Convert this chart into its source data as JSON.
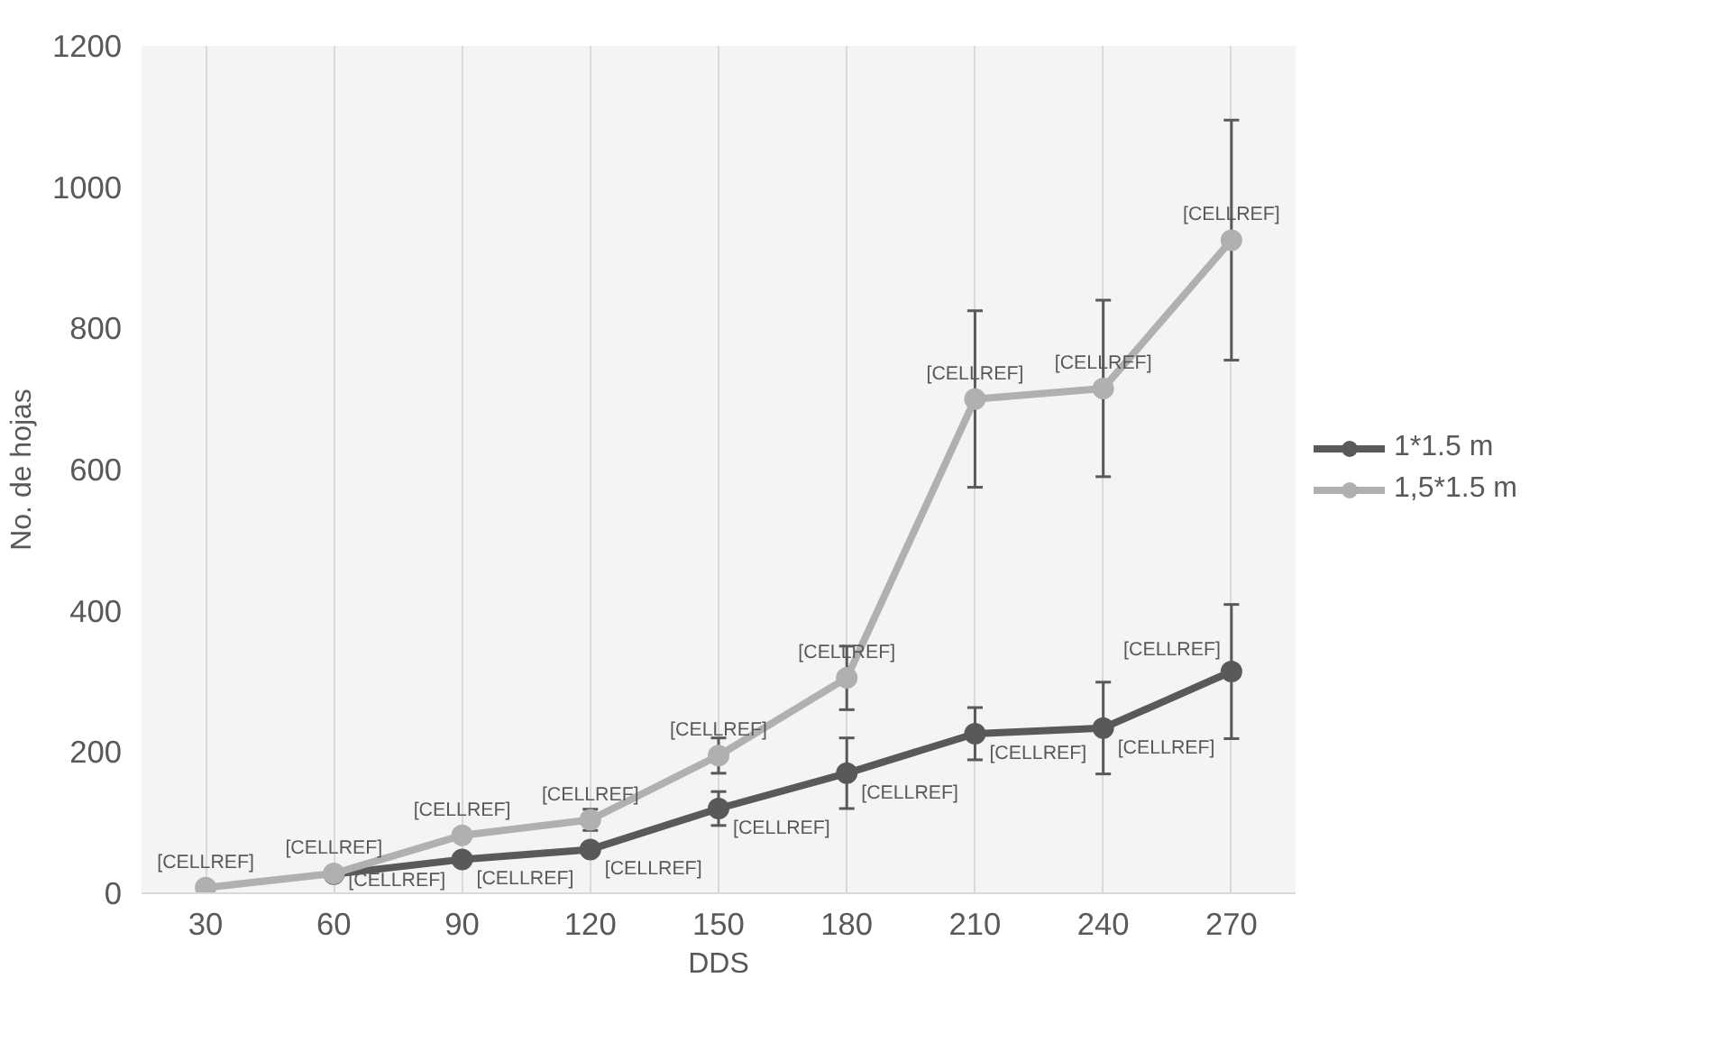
{
  "chart_data": {
    "type": "line",
    "xlabel": "DDS",
    "ylabel": "No. de hojas",
    "categories": [
      "30",
      "60",
      "90",
      "120",
      "150",
      "180",
      "210",
      "240",
      "270"
    ],
    "ylim": [
      0,
      1200
    ],
    "yticks": [
      0,
      200,
      400,
      600,
      800,
      1000,
      1200
    ],
    "grid": "x",
    "legend": "right",
    "marker": "circle",
    "line_style": "solid",
    "series": [
      {
        "name": "1*1.5 m",
        "color": "#595959",
        "values": [
          null,
          27,
          48,
          62,
          120,
          170,
          226,
          234,
          314
        ],
        "errors": [
          null,
          null,
          null,
          null,
          24,
          50,
          37,
          65,
          95
        ],
        "value_labels": [
          null,
          "[CELLREF]",
          "[CELLREF]",
          "[CELLREF]",
          "[CELLREF]",
          "[CELLREF]",
          "[CELLREF]",
          "[CELLREF]",
          "[CELLREF]"
        ]
      },
      {
        "name": "1,5*1.5 m",
        "color": "#b0b0b0",
        "values": [
          8,
          28,
          82,
          104,
          195,
          305,
          700,
          715,
          925
        ],
        "errors": [
          null,
          null,
          null,
          15,
          25,
          45,
          125,
          125,
          170
        ],
        "value_labels": [
          "[CELLREF]",
          "[CELLREF]",
          "[CELLREF]",
          "[CELLREF]",
          "[CELLREF]",
          "[CELLREF]",
          "[CELLREF]",
          "[CELLREF]",
          "[CELLREF]"
        ]
      }
    ]
  }
}
